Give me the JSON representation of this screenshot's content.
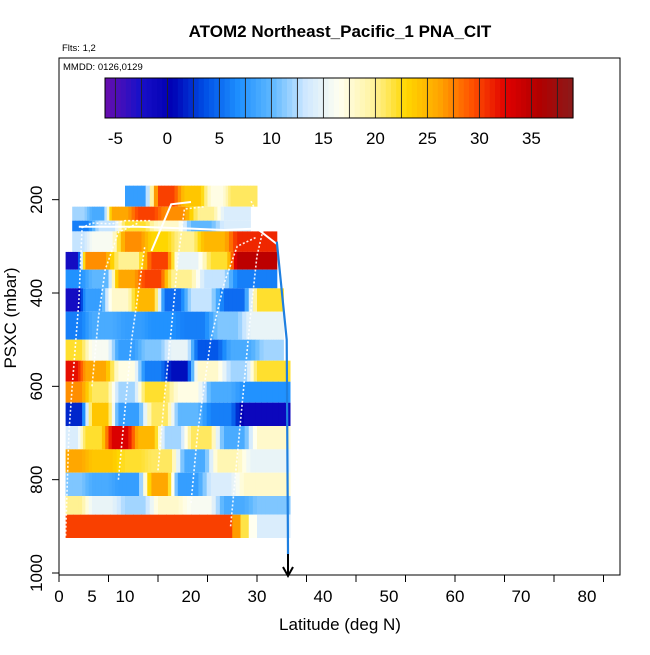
{
  "header": {
    "title": "ATOM2 Northeast_Pacific_1 PNA_CIT",
    "flights_note": "Flts: 1,2",
    "mmdd_note": "MMDD: 0126,0129"
  },
  "colorbar": {
    "tick_labels": [
      "-5",
      "0",
      "5",
      "10",
      "15",
      "20",
      "25",
      "30",
      "35"
    ],
    "tick_values": [
      -5,
      0,
      5,
      10,
      15,
      20,
      25,
      30,
      35
    ],
    "range": [
      -6,
      39
    ],
    "colors": [
      "#6a0dad",
      "#1a10c8",
      "#0000b4",
      "#0050e6",
      "#1e90ff",
      "#5fb8ff",
      "#cfe8ff",
      "#fffff0",
      "#fff3a0",
      "#ffd700",
      "#ffa500",
      "#ff5000",
      "#e00000",
      "#b00000",
      "#8b1a1a"
    ]
  },
  "chart_data": {
    "type": "heatmap",
    "xlabel": "Latitude (deg N)",
    "ylabel": "PSXC (mbar)",
    "xlim": [
      0,
      85
    ],
    "ylim": [
      1000,
      100
    ],
    "x_tick_labels": [
      "0",
      "5",
      "10",
      "20",
      "30",
      "40",
      "50",
      "60",
      "70",
      "80"
    ],
    "x_tick_values": [
      0,
      5,
      10,
      20,
      30,
      40,
      50,
      60,
      70,
      80
    ],
    "y_tick_labels": [
      "200",
      "400",
      "600",
      "800",
      "1000"
    ],
    "y_tick_values": [
      200,
      400,
      600,
      800,
      1000
    ],
    "value_range": [
      -6,
      39
    ],
    "rows": [
      {
        "p0": 170,
        "p1": 215,
        "segments": [
          [
            10,
            15,
            8
          ],
          [
            15,
            19,
            30
          ],
          [
            19,
            23,
            24
          ],
          [
            23,
            26,
            17
          ],
          [
            26,
            30,
            21
          ]
        ]
      },
      {
        "p0": 215,
        "p1": 245,
        "segments": [
          [
            2,
            5,
            12
          ],
          [
            5,
            8,
            9
          ],
          [
            8,
            12,
            26
          ],
          [
            12,
            16,
            30
          ],
          [
            16,
            21,
            27
          ],
          [
            21,
            25,
            20
          ],
          [
            25,
            29,
            14
          ]
        ]
      },
      {
        "p0": 245,
        "p1": 268,
        "segments": [
          [
            2,
            6,
            6
          ],
          [
            6,
            10,
            13
          ],
          [
            10,
            15,
            22
          ],
          [
            15,
            20,
            18
          ],
          [
            20,
            25,
            10
          ],
          [
            25,
            29,
            14
          ]
        ]
      },
      {
        "p0": 268,
        "p1": 312,
        "segments": [
          [
            2,
            5,
            13
          ],
          [
            5,
            10,
            16
          ],
          [
            10,
            14,
            27
          ],
          [
            14,
            18,
            23
          ],
          [
            18,
            22,
            20
          ],
          [
            22,
            27,
            25
          ],
          [
            27,
            33,
            31
          ]
        ]
      },
      {
        "p0": 312,
        "p1": 350,
        "segments": [
          [
            1,
            4,
            -2
          ],
          [
            4,
            9,
            27
          ],
          [
            9,
            14,
            20
          ],
          [
            14,
            18,
            30
          ],
          [
            18,
            23,
            15
          ],
          [
            23,
            27,
            22
          ],
          [
            27,
            33,
            35
          ]
        ]
      },
      {
        "p0": 350,
        "p1": 390,
        "segments": [
          [
            1,
            5,
            7
          ],
          [
            5,
            9,
            10
          ],
          [
            9,
            13,
            26
          ],
          [
            13,
            17,
            30
          ],
          [
            17,
            22,
            20
          ],
          [
            22,
            27,
            13
          ],
          [
            27,
            33,
            6
          ]
        ]
      },
      {
        "p0": 390,
        "p1": 440,
        "segments": [
          [
            1,
            4,
            -2
          ],
          [
            4,
            8,
            8
          ],
          [
            8,
            12,
            18
          ],
          [
            12,
            16,
            25
          ],
          [
            16,
            20,
            5
          ],
          [
            20,
            25,
            13
          ],
          [
            25,
            30,
            5
          ],
          [
            30,
            34,
            22
          ]
        ]
      },
      {
        "p0": 440,
        "p1": 500,
        "segments": [
          [
            1,
            5,
            6
          ],
          [
            5,
            10,
            9
          ],
          [
            10,
            14,
            8
          ],
          [
            14,
            19,
            7
          ],
          [
            19,
            24,
            6
          ],
          [
            24,
            29,
            11
          ],
          [
            29,
            34,
            15
          ]
        ]
      },
      {
        "p0": 500,
        "p1": 545,
        "segments": [
          [
            1,
            5,
            22
          ],
          [
            5,
            9,
            16
          ],
          [
            9,
            13,
            8
          ],
          [
            13,
            17,
            11
          ],
          [
            17,
            21,
            15
          ],
          [
            21,
            26,
            4
          ],
          [
            26,
            31,
            9
          ],
          [
            31,
            34,
            12
          ]
        ]
      },
      {
        "p0": 545,
        "p1": 590,
        "segments": [
          [
            1,
            4,
            32
          ],
          [
            4,
            9,
            26
          ],
          [
            9,
            13,
            17
          ],
          [
            13,
            17,
            6
          ],
          [
            17,
            21,
            1
          ],
          [
            21,
            26,
            18
          ],
          [
            26,
            30,
            12
          ],
          [
            30,
            35,
            22
          ]
        ]
      },
      {
        "p0": 590,
        "p1": 635,
        "segments": [
          [
            1,
            5,
            27
          ],
          [
            5,
            9,
            21
          ],
          [
            9,
            13,
            12
          ],
          [
            13,
            18,
            22
          ],
          [
            18,
            23,
            17
          ],
          [
            23,
            28,
            9
          ],
          [
            28,
            35,
            7
          ]
        ]
      },
      {
        "p0": 635,
        "p1": 685,
        "segments": [
          [
            1,
            5,
            2
          ],
          [
            5,
            9,
            24
          ],
          [
            9,
            14,
            8
          ],
          [
            14,
            18,
            21
          ],
          [
            18,
            23,
            10
          ],
          [
            23,
            28,
            6
          ],
          [
            28,
            35,
            -1
          ]
        ]
      },
      {
        "p0": 685,
        "p1": 735,
        "segments": [
          [
            1,
            4,
            14
          ],
          [
            4,
            8,
            22
          ],
          [
            8,
            12,
            33
          ],
          [
            12,
            16,
            25
          ],
          [
            16,
            20,
            12
          ],
          [
            20,
            25,
            21
          ],
          [
            25,
            30,
            9
          ],
          [
            30,
            35,
            18
          ]
        ]
      },
      {
        "p0": 735,
        "p1": 785,
        "segments": [
          [
            1,
            5,
            26
          ],
          [
            5,
            10,
            24
          ],
          [
            10,
            14,
            22
          ],
          [
            14,
            19,
            21
          ],
          [
            19,
            24,
            9
          ],
          [
            24,
            29,
            19
          ],
          [
            29,
            35,
            15
          ]
        ]
      },
      {
        "p0": 785,
        "p1": 835,
        "segments": [
          [
            1,
            5,
            11
          ],
          [
            5,
            9,
            9
          ],
          [
            9,
            14,
            8
          ],
          [
            14,
            18,
            26
          ],
          [
            18,
            23,
            8
          ],
          [
            23,
            28,
            14
          ],
          [
            28,
            35,
            18
          ]
        ]
      },
      {
        "p0": 835,
        "p1": 875,
        "segments": [
          [
            1,
            5,
            20
          ],
          [
            5,
            10,
            15
          ],
          [
            10,
            15,
            12
          ],
          [
            15,
            20,
            18
          ],
          [
            20,
            25,
            16
          ],
          [
            25,
            30,
            9
          ],
          [
            30,
            35,
            11
          ]
        ]
      },
      {
        "p0": 875,
        "p1": 925,
        "segments": [
          [
            1,
            10,
            30
          ],
          [
            10,
            20,
            30
          ],
          [
            20,
            30,
            30
          ],
          [
            30,
            35,
            14
          ]
        ]
      }
    ]
  }
}
